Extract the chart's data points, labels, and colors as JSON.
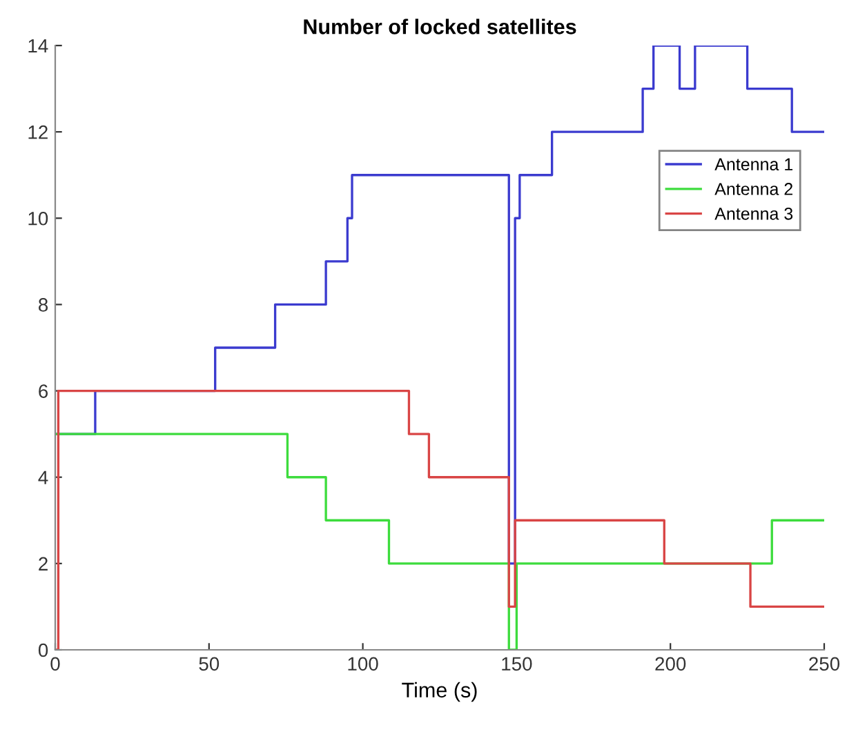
{
  "chart_data": {
    "type": "step",
    "title": "Number of locked satellites",
    "xlabel": "Time (s)",
    "series": [
      {
        "name": "Antenna 1",
        "color": "#3b3bcf",
        "x": [
          0,
          13,
          52,
          71.5,
          88,
          95,
          96.5,
          147.5,
          149.5,
          151,
          161.5,
          191,
          194.5,
          203,
          208,
          225,
          239.5,
          250
        ],
        "values": [
          5,
          6,
          7,
          8,
          9,
          10,
          11,
          2,
          10,
          11,
          12,
          13,
          14,
          13,
          14,
          13,
          12,
          12
        ]
      },
      {
        "name": "Antenna 2",
        "color": "#3ddc3d",
        "x": [
          0,
          75.5,
          88,
          108.5,
          147.5,
          150,
          233,
          250
        ],
        "values": [
          5,
          4,
          3,
          2,
          0,
          2,
          3,
          3
        ]
      },
      {
        "name": "Antenna 3",
        "color": "#d94545",
        "x": [
          0,
          1,
          115,
          121.5,
          147.5,
          149.5,
          198,
          226,
          250
        ],
        "values": [
          0,
          6,
          5,
          4,
          1,
          3,
          2,
          1,
          1
        ]
      }
    ],
    "xlim": [
      0,
      250
    ],
    "ylim": [
      0,
      14
    ],
    "xticks": [
      0,
      50,
      100,
      150,
      200,
      250
    ],
    "yticks": [
      0,
      2,
      4,
      6,
      8,
      10,
      12,
      14
    ],
    "grid": false,
    "legend": "top right"
  }
}
